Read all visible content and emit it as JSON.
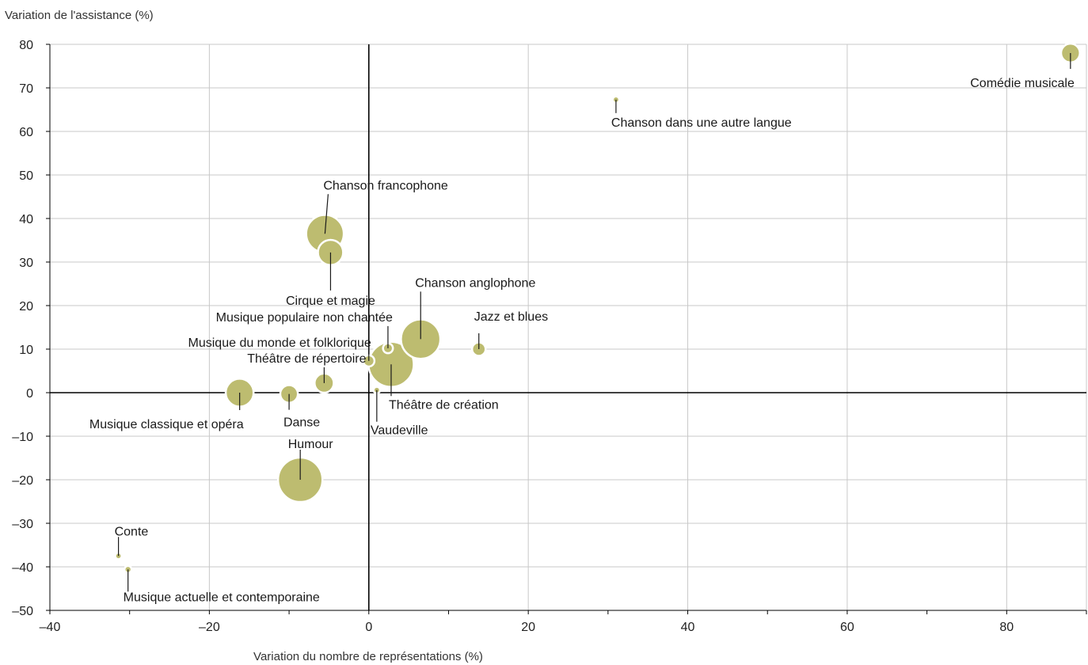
{
  "chart_data": {
    "type": "scatter",
    "subtype": "bubble",
    "title": "",
    "xlabel": "Variation du nombre de représentations (%)",
    "ylabel": "Variation de l'assistance (%)",
    "xlim": [
      -40,
      90
    ],
    "ylim": [
      -50,
      80
    ],
    "xticks": [
      -40,
      -20,
      0,
      20,
      40,
      60,
      80
    ],
    "xtick_labels": [
      "–40",
      "–20",
      "0",
      "20",
      "40",
      "60",
      "80"
    ],
    "yticks": [
      -50,
      -40,
      -30,
      -20,
      -10,
      0,
      10,
      20,
      30,
      40,
      50,
      60,
      70,
      80
    ],
    "ytick_labels": [
      "–50",
      "–40",
      "–30",
      "–20",
      "–10",
      "0",
      "10",
      "20",
      "30",
      "40",
      "50",
      "60",
      "70",
      "80"
    ],
    "grid": true,
    "bubble_color": "#bdbc70",
    "points": [
      {
        "label": "Comédie musicale",
        "x": 88,
        "y": 78,
        "size": 2.5
      },
      {
        "label": "Chanson dans une autre langue",
        "x": 31,
        "y": 67.3,
        "size": 0.3
      },
      {
        "label": "Chanson francophone",
        "x": -5.5,
        "y": 36.5,
        "size": 10
      },
      {
        "label": "Cirque et magie",
        "x": -4.8,
        "y": 32.2,
        "size": 4.5
      },
      {
        "label": "Chanson anglophone",
        "x": 6.5,
        "y": 12.3,
        "size": 11
      },
      {
        "label": "Jazz et blues",
        "x": 13.8,
        "y": 10,
        "size": 1.3
      },
      {
        "label": "Musique populaire non chantée",
        "x": 2.4,
        "y": 10.2,
        "size": 0.7
      },
      {
        "label": "Musique du monde et folklorique",
        "x": 0,
        "y": 7.3,
        "size": 0.9
      },
      {
        "label": "Théâtre de création",
        "x": 2.8,
        "y": 6.5,
        "size": 14.5
      },
      {
        "label": "Théâtre de répertoire",
        "x": -5.6,
        "y": 2.2,
        "size": 2.6
      },
      {
        "label": "Vaudeville",
        "x": 1,
        "y": 0.6,
        "size": 0.3
      },
      {
        "label": "Danse",
        "x": -10,
        "y": -0.3,
        "size": 2.2
      },
      {
        "label": "Musique classique et opéra",
        "x": -16.2,
        "y": 0,
        "size": 5.5
      },
      {
        "label": "Humour",
        "x": -8.6,
        "y": -20,
        "size": 14
      },
      {
        "label": "Conte",
        "x": -31.4,
        "y": -37.5,
        "size": 0.3
      },
      {
        "label": "Musique actuelle et contemporaine",
        "x": -30.2,
        "y": -40.6,
        "size": 0.35
      }
    ]
  }
}
